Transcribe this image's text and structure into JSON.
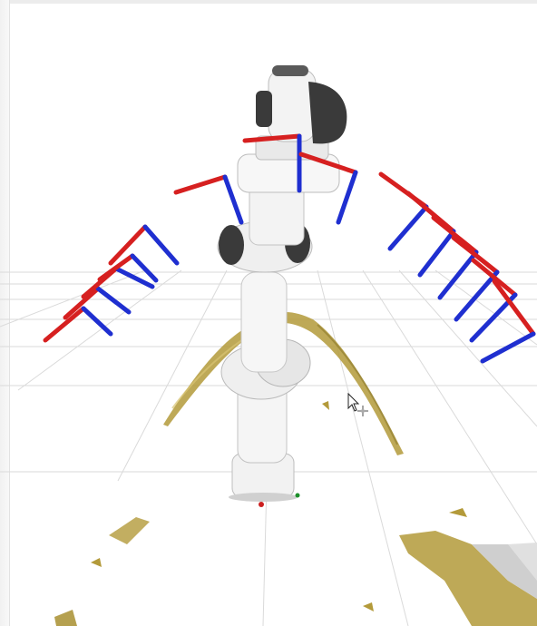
{
  "scene": {
    "background_color": "#ffffff",
    "grid_color": "#d8d8d8",
    "axis_x_color": "#d62020",
    "axis_z_color": "#1f2fd0",
    "axis_y_color": "#1c8f2a",
    "robot_body_color": "#f2f2f2",
    "robot_dark_color": "#3a3a3a",
    "pointcloud_color": "#b39a3a",
    "gripper_marker_color": "#cc1f1f"
  },
  "cursor": {
    "icon": "arrow-cursor-icon",
    "move_icon": "move-crosshair-icon"
  }
}
